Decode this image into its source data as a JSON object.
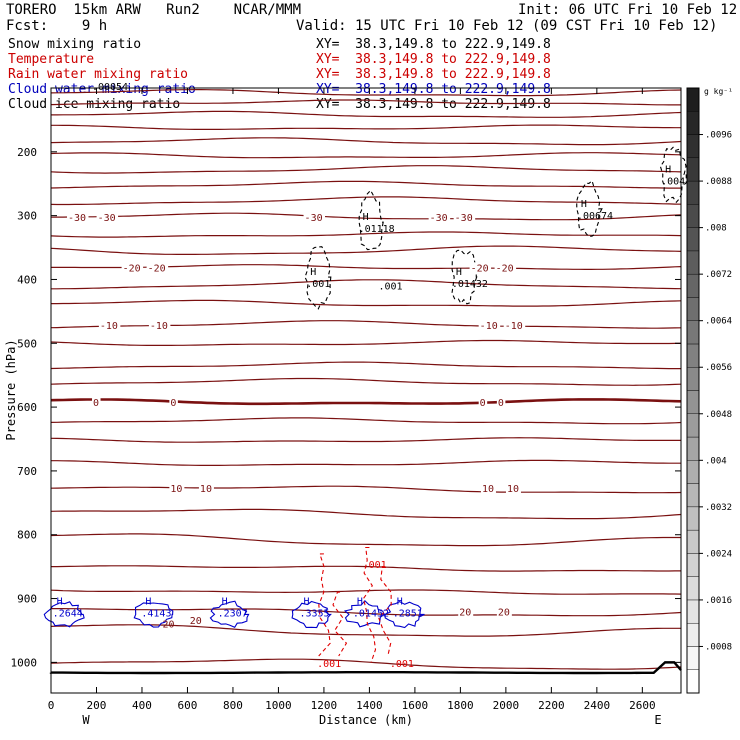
{
  "header": {
    "model": "TORERO  15km ARW   Run2    NCAR/MMM",
    "init": "Init: 06 UTC Fri 10 Feb 12",
    "fcst": "Fcst:    9 h",
    "valid": "Valid: 15 UTC Fri 10 Feb 12 (09 CST Fri 10 Feb 12)"
  },
  "legend": [
    {
      "name": "Snow mixing ratio",
      "xy": "XY=  38.3,149.8 to 222.9,149.8",
      "color": "#000000",
      "xy_color": "#000000"
    },
    {
      "name": "Temperature",
      "xy": "XY=  38.3,149.8 to 222.9,149.8",
      "color": "#cc0000",
      "xy_color": "#cc0000"
    },
    {
      "name": "Rain water mixing ratio",
      "xy": "XY=  38.3,149.8 to 222.9,149.8",
      "color": "#cc0000",
      "xy_color": "#cc0000"
    },
    {
      "name": "Cloud water mixing ratio",
      "xy": "XY=  38.3,149.8 to 222.9,149.8",
      "color": "#0000bb",
      "xy_color": "#0000bb"
    },
    {
      "name": "Cloud ice mixing ratio",
      "xy": "XY=  38.3,149.8 to 222.9,149.8",
      "color": "#000000",
      "xy_color": "#000000"
    }
  ],
  "colors": {
    "temperature": "#7a1010",
    "rain": "#e00000",
    "cloud_water": "#0000cc",
    "snow": "#000000",
    "ice": "#000000",
    "terrain": "#000000"
  },
  "chart_data": {
    "type": "cross-section",
    "xlabel": "Distance (km)",
    "ylabel": "Pressure (hPa)",
    "xlim": [
      0,
      2770
    ],
    "ylim": [
      1048,
      100
    ],
    "x_ticks": [
      0,
      200,
      400,
      600,
      800,
      1000,
      1200,
      1400,
      1600,
      1800,
      2000,
      2200,
      2400,
      2600
    ],
    "y_ticks": [
      200,
      300,
      400,
      500,
      600,
      700,
      800,
      900,
      1000
    ],
    "x_end_labels": {
      "left": "W",
      "right": "E"
    },
    "temperature_contours": [
      {
        "p": 108
      },
      {
        "p": 123
      },
      {
        "p": 142
      },
      {
        "p": 162
      },
      {
        "p": 184
      },
      {
        "p": 206
      },
      {
        "p": 228
      },
      {
        "p": 252
      },
      {
        "p": 277
      },
      {
        "p": 302,
        "label": "-30",
        "label_x": [
          110,
          240,
          1150,
          1700,
          1810
        ]
      },
      {
        "p": 330
      },
      {
        "p": 355
      },
      {
        "p": 381,
        "label": "-20",
        "label_x": [
          350,
          460,
          1880,
          1990
        ]
      },
      {
        "p": 408
      },
      {
        "p": 438
      },
      {
        "p": 471,
        "label": "-10",
        "label_x": [
          250,
          470,
          1920,
          2030
        ]
      },
      {
        "p": 500
      },
      {
        "p": 535
      },
      {
        "p": 561
      },
      {
        "p": 592,
        "label": "0",
        "label_x": [
          220,
          560,
          1920,
          2000
        ],
        "bold": true
      },
      {
        "p": 622
      },
      {
        "p": 652
      },
      {
        "p": 688
      },
      {
        "p": 727,
        "label": "10",
        "label_x": [
          560,
          690,
          1930,
          2040
        ]
      },
      {
        "p": 766
      },
      {
        "p": 808
      },
      {
        "p": 851
      },
      {
        "p": 888
      },
      {
        "p": 920,
        "label": "20",
        "label_x": [
          1830,
          2000
        ]
      },
      {
        "p": 950
      },
      {
        "p": 1001
      }
    ],
    "temperature_labels": [
      "-30",
      "-20",
      "-10",
      "0",
      "10",
      "20"
    ],
    "highs": [
      {
        "x": 25,
        "p": 928,
        "value": ".2644",
        "color": "#0000cc"
      },
      {
        "x": 415,
        "p": 928,
        "value": ".4143",
        "color": "#0000cc"
      },
      {
        "x": 750,
        "p": 928,
        "value": ".2307",
        "color": "#0000cc"
      },
      {
        "x": 1110,
        "p": 928,
        "value": ".3355",
        "color": "#0000cc"
      },
      {
        "x": 1345,
        "p": 928,
        "value": ".01452",
        "color": "#0000cc"
      },
      {
        "x": 1520,
        "p": 928,
        "value": ".2851",
        "color": "#0000cc"
      },
      {
        "x": 1140,
        "p": 412,
        "value": ".001",
        "color": "#000000"
      },
      {
        "x": 1370,
        "p": 326,
        "value": ".01118",
        "color": "#000000"
      },
      {
        "x": 1780,
        "p": 412,
        "value": ".01432",
        "color": "#000000"
      },
      {
        "x": 2330,
        "p": 305,
        "value": ".00674",
        "color": "#000000"
      },
      {
        "x": 2700,
        "p": 251,
        "value": ".004",
        "color": "#000000"
      }
    ],
    "contour_value_labels": [
      {
        "x": 180,
        "p": 103,
        "value": ".00054",
        "color": "#000000"
      },
      {
        "x": 1440,
        "p": 416,
        "value": ".001",
        "color": "#000000"
      },
      {
        "x": 1370,
        "p": 852,
        "value": ".001",
        "color": "#e00000"
      },
      {
        "x": 1170,
        "p": 1007,
        "value": ".001",
        "color": "#e00000"
      },
      {
        "x": 1490,
        "p": 1007,
        "value": ".001",
        "color": "#e00000"
      },
      {
        "x": 490,
        "p": 945,
        "value": "20",
        "color": "#7a1010"
      },
      {
        "x": 610,
        "p": 940,
        "value": "20",
        "color": "#7a1010"
      }
    ],
    "colorbar": {
      "unit": "g kg⁻¹",
      "ticks": [
        ".0096",
        ".0088",
        ".008",
        ".0072",
        ".0064",
        ".0056",
        ".0048",
        ".004",
        ".0032",
        ".0024",
        ".0016",
        ".0008"
      ],
      "min": 0,
      "max": 0.0104,
      "step": 0.0004
    }
  }
}
